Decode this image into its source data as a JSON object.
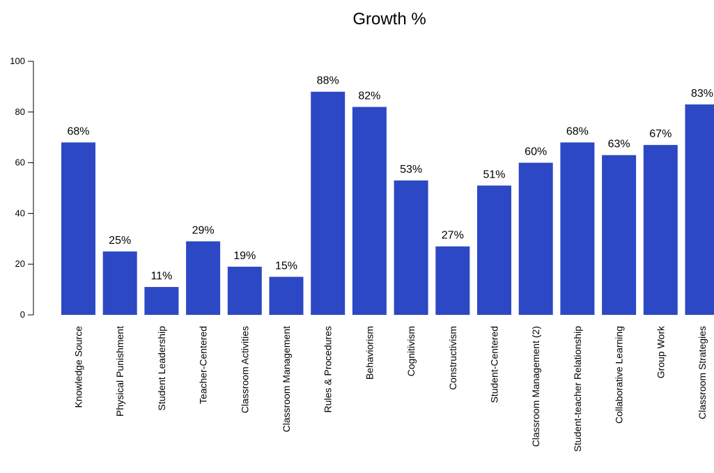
{
  "chart_data": {
    "type": "bar",
    "title": "Growth %",
    "xlabel": "",
    "ylabel": "",
    "ylim": [
      0,
      100
    ],
    "yticks": [
      "0",
      "20",
      "40",
      "60",
      "80",
      "100"
    ],
    "categories": [
      "Knowledge Source",
      "Physical Punishment",
      "Student Leadership",
      "Teacher-Centered",
      "Classroom Activities",
      "Classroom Management",
      "Rules & Procedures",
      "Behaviorism",
      "Cognitivism",
      "Constructivism",
      "Student-Centered",
      "Classroom Management (2)",
      "Student-teacher Relationship",
      "Collaborative Learning",
      "Group Work",
      "Classroom Strategies"
    ],
    "values": [
      68,
      25,
      11,
      29,
      19,
      15,
      88,
      82,
      53,
      27,
      51,
      60,
      68,
      63,
      67,
      83
    ],
    "data_labels": [
      "68%",
      "25%",
      "11%",
      "29%",
      "19%",
      "15%",
      "88%",
      "82%",
      "53%",
      "27%",
      "51%",
      "60%",
      "68%",
      "63%",
      "67%",
      "83%"
    ],
    "grid": false,
    "legend": "none",
    "bar_color": "#2c48c4"
  }
}
